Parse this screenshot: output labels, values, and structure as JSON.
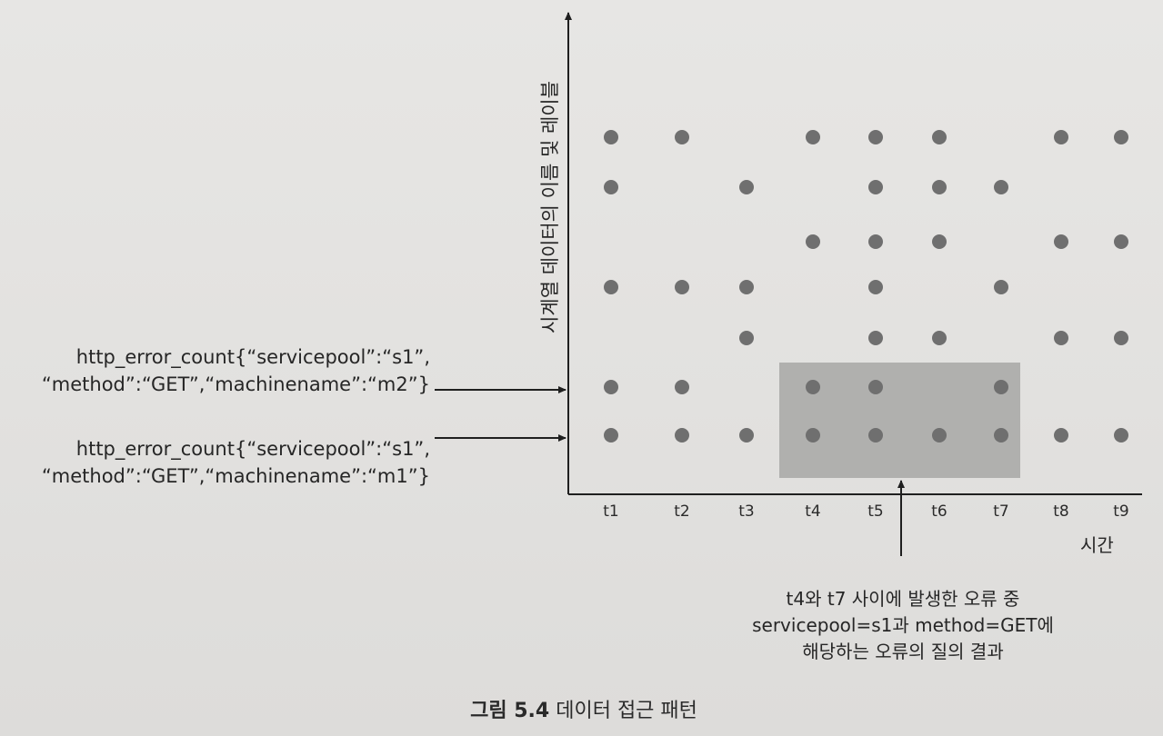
{
  "chart_data": {
    "type": "scatter",
    "title": "",
    "xlabel": "시간",
    "ylabel": "시계열 데이터의 이름 및 레이블",
    "categories": [
      "t1",
      "t2",
      "t3",
      "t4",
      "t5",
      "t6",
      "t7",
      "t8",
      "t9"
    ],
    "rows": [
      {
        "row": 1,
        "points": [
          "t1",
          "t2",
          "t4",
          "t5",
          "t6",
          "t8",
          "t9"
        ]
      },
      {
        "row": 2,
        "points": [
          "t1",
          "t3",
          "t5",
          "t6",
          "t7"
        ]
      },
      {
        "row": 3,
        "points": [
          "t4",
          "t5",
          "t6",
          "t8",
          "t9"
        ]
      },
      {
        "row": 4,
        "points": [
          "t1",
          "t2",
          "t3",
          "t5",
          "t7"
        ]
      },
      {
        "row": 5,
        "points": [
          "t3",
          "t5",
          "t6",
          "t8",
          "t9"
        ]
      },
      {
        "row": 6,
        "label_ref": "m2",
        "points": [
          "t1",
          "t2",
          "t4",
          "t5",
          "t7"
        ]
      },
      {
        "row": 7,
        "label_ref": "m1",
        "points": [
          "t1",
          "t2",
          "t3",
          "t4",
          "t5",
          "t6",
          "t7",
          "t8",
          "t9"
        ]
      }
    ],
    "highlight": {
      "from": "t4",
      "to": "t7",
      "rows": [
        "m2",
        "m1"
      ]
    },
    "grid": false
  },
  "series_labels": {
    "m2": {
      "line1": "http_error_count{“servicepool”:“s1”,",
      "line2": "“method”:“GET”,“machinename”:“m2”}"
    },
    "m1": {
      "line1": "http_error_count{“servicepool”:“s1”,",
      "line2": "“method”:“GET”,“machinename”:“m1”}"
    }
  },
  "annotation": {
    "line1": "t4와 t7 사이에 발생한 오류 중",
    "line2": "servicepool=s1과 method=GET에",
    "line3": "해당하는 오류의 질의 결과"
  },
  "caption": {
    "figure_number": "그림 5.4",
    "title": "데이터 접근 패턴"
  },
  "colors": {
    "axis": "#1f1f1f",
    "dot": "#6f6f6f",
    "highlight": "#a7a7a6",
    "arrow": "#1f1f1f"
  }
}
